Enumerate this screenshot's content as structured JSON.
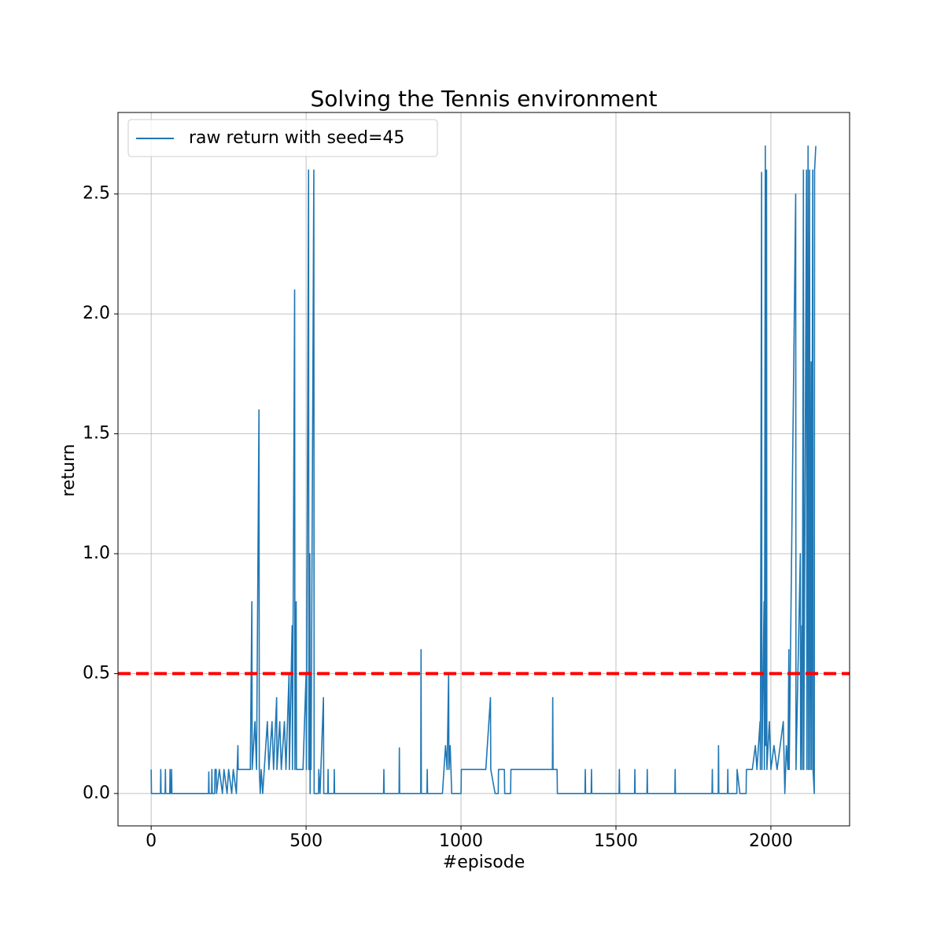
{
  "chart_data": {
    "type": "line",
    "title": "Solving the Tennis environment",
    "xlabel": "#episode",
    "ylabel": "return",
    "xlim": [
      -107,
      2254
    ],
    "ylim": [
      -0.135,
      2.84
    ],
    "xticks": [
      0,
      500,
      1000,
      1500,
      2000
    ],
    "yticks": [
      {
        "value": 0,
        "label": "0.0"
      },
      0.5,
      {
        "value": 1,
        "label": "1.0"
      },
      1.5,
      {
        "value": 2,
        "label": "2.0"
      },
      2.5
    ],
    "grid": true,
    "legend": "upper left",
    "hlines": [
      {
        "value": 0.5,
        "color": "#ff0000"
      }
    ],
    "x": [
      0,
      1,
      30,
      31,
      32,
      45,
      46,
      47,
      60,
      61,
      62,
      65,
      66,
      67,
      185,
      186,
      187,
      195,
      196,
      197,
      205,
      206,
      210,
      211,
      220,
      230,
      235,
      245,
      250,
      260,
      265,
      275,
      280,
      281,
      290,
      300,
      320,
      325,
      326,
      335,
      340,
      348,
      349,
      352,
      355,
      360,
      365,
      375,
      380,
      390,
      395,
      405,
      406,
      415,
      420,
      430,
      435,
      445,
      446,
      455,
      456,
      463,
      464,
      468,
      469,
      480,
      490,
      500,
      501,
      508,
      509,
      512,
      513,
      515,
      516,
      525,
      526,
      540,
      541,
      545,
      556,
      557,
      570,
      571,
      572,
      590,
      591,
      592,
      750,
      751,
      752,
      800,
      801,
      802,
      870,
      871,
      872,
      890,
      891,
      892,
      940,
      945,
      950,
      955,
      960,
      961,
      965,
      970,
      1000,
      1001,
      1050,
      1080,
      1095,
      1096,
      1110,
      1120,
      1121,
      1140,
      1141,
      1160,
      1161,
      1200,
      1240,
      1260,
      1295,
      1296,
      1297,
      1310,
      1311,
      1400,
      1401,
      1402,
      1420,
      1421,
      1422,
      1510,
      1511,
      1512,
      1560,
      1561,
      1562,
      1600,
      1601,
      1602,
      1690,
      1691,
      1692,
      1810,
      1811,
      1812,
      1830,
      1831,
      1832,
      1860,
      1861,
      1862,
      1890,
      1891,
      1900,
      1920,
      1921,
      1940,
      1950,
      1955,
      1965,
      1966,
      1970,
      1971,
      1978,
      1979,
      1982,
      1983,
      1986,
      1987,
      1995,
      2000,
      2010,
      2020,
      2040,
      2045,
      2050,
      2055,
      2058,
      2059,
      2080,
      2081,
      2095,
      2096,
      2100,
      2101,
      2105,
      2106,
      2115,
      2116,
      2120,
      2121,
      2125,
      2126,
      2130,
      2131,
      2135,
      2136,
      2140,
      2141,
      2145
    ],
    "series": [
      {
        "name": "raw return with seed=45",
        "color": "#1f77b4",
        "values": [
          0.1,
          0,
          0,
          0.1,
          0,
          0,
          0.1,
          0,
          0,
          0.1,
          0,
          0,
          0.1,
          0,
          0,
          0.09,
          0,
          0,
          0.1,
          0,
          0,
          0.1,
          0.1,
          0,
          0.1,
          0,
          0.1,
          0,
          0.1,
          0,
          0.1,
          0,
          0.2,
          0.1,
          0.1,
          0.1,
          0.1,
          0.8,
          0.1,
          0.3,
          0.1,
          1.6,
          0.1,
          0,
          0.1,
          0,
          0.1,
          0.3,
          0.1,
          0.3,
          0.1,
          0.4,
          0.1,
          0.3,
          0.1,
          0.3,
          0.1,
          0.5,
          0.1,
          0.7,
          0.1,
          2.1,
          0.1,
          0.8,
          0.1,
          0.1,
          0.1,
          0.5,
          0.1,
          2.6,
          0.1,
          1.0,
          0,
          0.5,
          0.1,
          2.6,
          0,
          0,
          0.1,
          0,
          0.4,
          0,
          0,
          0.1,
          0,
          0,
          0.1,
          0,
          0,
          0.1,
          0,
          0,
          0.19,
          0,
          0,
          0.6,
          0,
          0,
          0.1,
          0,
          0,
          0.1,
          0.2,
          0.1,
          0.5,
          0.1,
          0.2,
          0,
          0,
          0.1,
          0.1,
          0.1,
          0.4,
          0.1,
          0,
          0,
          0.1,
          0.1,
          0,
          0,
          0.1,
          0.1,
          0.1,
          0.1,
          0.1,
          0.4,
          0.1,
          0.1,
          0,
          0,
          0.1,
          0,
          0,
          0.1,
          0,
          0,
          0.1,
          0,
          0,
          0.1,
          0,
          0,
          0.1,
          0,
          0,
          0.1,
          0,
          0,
          0.1,
          0,
          0,
          0.2,
          0,
          0,
          0.1,
          0,
          0,
          0.1,
          0,
          0,
          0.1,
          0.1,
          0.2,
          0.1,
          0.3,
          0.1,
          2.59,
          0.1,
          0.8,
          0.1,
          2.7,
          0.2,
          2.6,
          0.1,
          0.3,
          0.1,
          0.2,
          0.1,
          0.3,
          0,
          0.2,
          0.1,
          0.6,
          0.1,
          2.5,
          0.1,
          1.0,
          0.1,
          0.7,
          0.1,
          2.6,
          0.1,
          2.6,
          0.1,
          2.7,
          0.1,
          2.6,
          0.1,
          1.8,
          0.1,
          2.6,
          0.1,
          0,
          2.6,
          2.7
        ]
      }
    ]
  }
}
